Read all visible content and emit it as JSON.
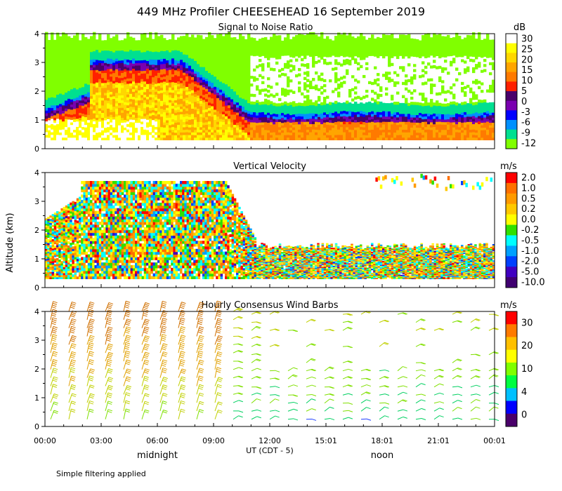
{
  "title": "449 MHz Profiler CHEESEHEAD 16 September 2019",
  "ylabel": "Altitude (km)",
  "footnote": "Simple filtering applied",
  "chart_data": [
    {
      "type": "heatmap",
      "title": "Signal to Noise Ratio",
      "ylim": [
        0,
        4
      ],
      "yticks": [
        "0",
        "1",
        "2",
        "3",
        "4"
      ],
      "colorbar": {
        "unit": "dB",
        "labels": [
          "30",
          "25",
          "20",
          "15",
          "10",
          "5",
          "0",
          "-3",
          "-6",
          "-9",
          "-12"
        ],
        "colors": [
          "#ffffff",
          "#ffff00",
          "#ffd700",
          "#ffa500",
          "#ff7a00",
          "#ff2000",
          "#4a006a",
          "#7a00b0",
          "#0000ff",
          "#0090ff",
          "#00e090",
          "#80ff00"
        ]
      }
    },
    {
      "type": "heatmap",
      "title": "Vertical Velocity",
      "ylim": [
        0,
        4
      ],
      "yticks": [
        "0",
        "1",
        "2",
        "3",
        "4"
      ],
      "colorbar": {
        "unit": "m/s",
        "labels": [
          "2.0",
          "1.0",
          "0.5",
          "0.2",
          "0.0",
          "-0.2",
          "-0.5",
          "-1.0",
          "-2.0",
          "-5.0",
          "-10.0"
        ],
        "colors": [
          "#ff0000",
          "#ff7000",
          "#ff9a00",
          "#ffc800",
          "#ffff00",
          "#30e000",
          "#00ffff",
          "#00a0ff",
          "#0040ff",
          "#4000c0",
          "#400070"
        ]
      }
    },
    {
      "type": "wind_barbs",
      "title": "Hourly Consensus Wind Barbs",
      "ylim": [
        0,
        4
      ],
      "yticks": [
        "0",
        "1",
        "2",
        "3",
        "4"
      ],
      "colorbar": {
        "unit": "m/s",
        "labels": [
          "30",
          "20",
          "10",
          "4",
          "0"
        ],
        "colors": [
          "#ff0000",
          "#ff7a00",
          "#ffc000",
          "#ffff00",
          "#80ff00",
          "#00ff40",
          "#00c0ff",
          "#0000ff",
          "#4a006a"
        ]
      }
    }
  ],
  "xaxis": {
    "ticks": [
      "00:00",
      "03:00",
      "06:00",
      "09:00",
      "12:00",
      "15:01",
      "18:01",
      "21:01",
      "00:01"
    ],
    "label": "UT  (CDT - 5)",
    "annotations": [
      "midnight",
      "noon"
    ]
  }
}
